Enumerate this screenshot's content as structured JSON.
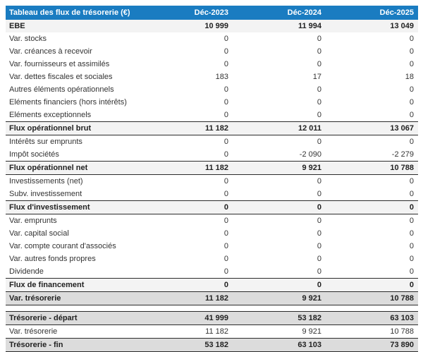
{
  "table": {
    "title": "Tableau des flux de trésorerie (€)",
    "columns": [
      "Déc-2023",
      "Déc-2024",
      "Déc-2025"
    ],
    "rows": [
      {
        "label": "EBE",
        "values": [
          "10 999",
          "11 994",
          "13 049"
        ],
        "style": "ebe"
      },
      {
        "label": "Var. stocks",
        "values": [
          "0",
          "0",
          "0"
        ],
        "style": "normal"
      },
      {
        "label": "Var. créances à recevoir",
        "values": [
          "0",
          "0",
          "0"
        ],
        "style": "normal"
      },
      {
        "label": "Var. fournisseurs et assimilés",
        "values": [
          "0",
          "0",
          "0"
        ],
        "style": "normal"
      },
      {
        "label": "Var. dettes fiscales et sociales",
        "values": [
          "183",
          "17",
          "18"
        ],
        "style": "normal"
      },
      {
        "label": "Autres éléments opérationnels",
        "values": [
          "0",
          "0",
          "0"
        ],
        "style": "normal"
      },
      {
        "label": "Eléments financiers (hors intérêts)",
        "values": [
          "0",
          "0",
          "0"
        ],
        "style": "normal"
      },
      {
        "label": "Eléments exceptionnels",
        "values": [
          "0",
          "0",
          "0"
        ],
        "style": "normal"
      },
      {
        "label": "Flux opérationnel brut",
        "values": [
          "11 182",
          "12 011",
          "13 067"
        ],
        "style": "subtotal"
      },
      {
        "label": "Intérêts sur emprunts",
        "values": [
          "0",
          "0",
          "0"
        ],
        "style": "normal"
      },
      {
        "label": "Impôt sociétés",
        "values": [
          "0",
          "-2 090",
          "-2 279"
        ],
        "style": "normal"
      },
      {
        "label": "Flux opérationnel net",
        "values": [
          "11 182",
          "9 921",
          "10 788"
        ],
        "style": "subtotal"
      },
      {
        "label": "Investissements (net)",
        "values": [
          "0",
          "0",
          "0"
        ],
        "style": "normal"
      },
      {
        "label": "Subv. investissement",
        "values": [
          "0",
          "0",
          "0"
        ],
        "style": "normal"
      },
      {
        "label": "Flux d'investissement",
        "values": [
          "0",
          "0",
          "0"
        ],
        "style": "subtotal"
      },
      {
        "label": "Var. emprunts",
        "values": [
          "0",
          "0",
          "0"
        ],
        "style": "normal"
      },
      {
        "label": "Var. capital social",
        "values": [
          "0",
          "0",
          "0"
        ],
        "style": "normal"
      },
      {
        "label": "Var. compte courant d'associés",
        "values": [
          "0",
          "0",
          "0"
        ],
        "style": "normal"
      },
      {
        "label": "Var. autres fonds propres",
        "values": [
          "0",
          "0",
          "0"
        ],
        "style": "normal"
      },
      {
        "label": "Dividende",
        "values": [
          "0",
          "0",
          "0"
        ],
        "style": "normal"
      },
      {
        "label": "Flux de financement",
        "values": [
          "0",
          "0",
          "0"
        ],
        "style": "subtotal"
      },
      {
        "label": "Var. trésorerie",
        "values": [
          "11 182",
          "9 921",
          "10 788"
        ],
        "style": "total"
      },
      {
        "label": "",
        "values": [],
        "style": "spacer"
      },
      {
        "label": "Trésorerie - départ",
        "values": [
          "41 999",
          "53 182",
          "63 103"
        ],
        "style": "total"
      },
      {
        "label": "Var. trésorerie",
        "values": [
          "11 182",
          "9 921",
          "10 788"
        ],
        "style": "normal"
      },
      {
        "label": "Trésorerie - fin",
        "values": [
          "53 182",
          "63 103",
          "73 890"
        ],
        "style": "total"
      }
    ]
  },
  "colors": {
    "header_bg": "#1a7cc1",
    "header_text": "#ffffff",
    "subtotal_row_bg": "#f3f3f3",
    "total_row_bg": "#dcdcdc",
    "dark_border": "#2b2b2b",
    "body_text": "#333333"
  }
}
